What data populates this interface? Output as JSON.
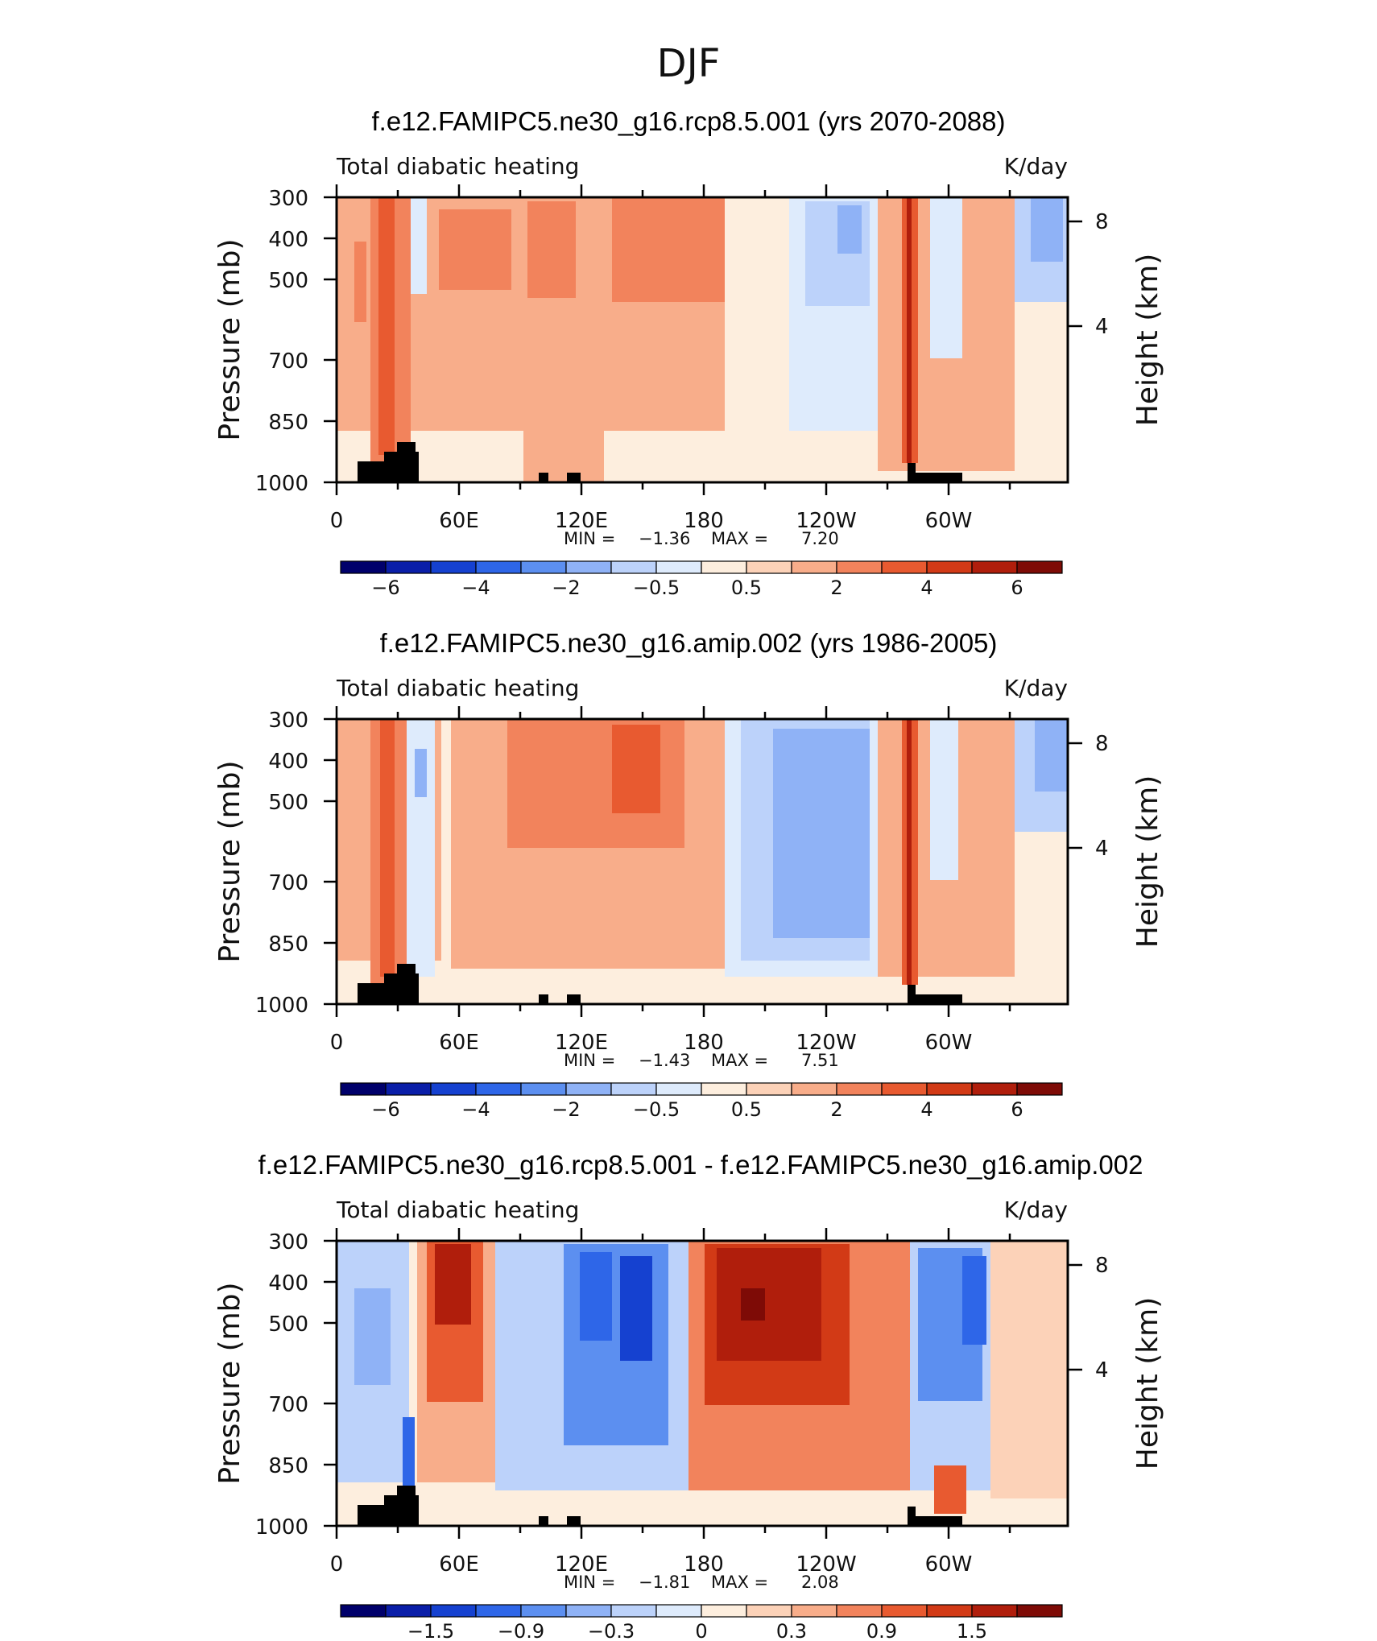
{
  "figure_title": "DJF",
  "colors": {
    "levels": [
      "#00006b",
      "#0a1ea8",
      "#1541d0",
      "#2e66e8",
      "#5c8ff0",
      "#8fb2f6",
      "#bcd2fa",
      "#deebfc",
      "#fdeede",
      "#fcd2b8",
      "#f8ad8a",
      "#f2835c",
      "#e85a30",
      "#d23a16",
      "#b01e0c",
      "#7e0b06"
    ],
    "land": "#000000"
  },
  "chart_data": [
    {
      "type": "heatmap",
      "title": "f.e12.FAMIPC5.ne30_g16.rcp8.5.001 (yrs 2070-2088)",
      "left_string": "Total diabatic heating",
      "right_string": "K/day",
      "xlabel": "",
      "ylabel": "Pressure (mb)",
      "ylabel_right": "Height (km)",
      "x_ticks": [
        "0",
        "60E",
        "120E",
        "180",
        "120W",
        "60W"
      ],
      "y_ticks": [
        "300",
        "400",
        "500",
        "700",
        "850",
        "1000"
      ],
      "height_ticks": [
        "8",
        "4"
      ],
      "min_label": "MIN =",
      "min_value": "−1.36",
      "max_label": "MAX =",
      "max_value": "7.20",
      "min": -1.36,
      "max": 7.2,
      "colorbar_labels": [
        "−6",
        "−4",
        "−2",
        "−0.5",
        "0.5",
        "2",
        "4",
        "6"
      ]
    },
    {
      "type": "heatmap",
      "title": "f.e12.FAMIPC5.ne30_g16.amip.002 (yrs 1986-2005)",
      "left_string": "Total diabatic heating",
      "right_string": "K/day",
      "xlabel": "",
      "ylabel": "Pressure (mb)",
      "ylabel_right": "Height (km)",
      "x_ticks": [
        "0",
        "60E",
        "120E",
        "180",
        "120W",
        "60W"
      ],
      "y_ticks": [
        "300",
        "400",
        "500",
        "700",
        "850",
        "1000"
      ],
      "height_ticks": [
        "8",
        "4"
      ],
      "min_label": "MIN =",
      "min_value": "−1.43",
      "max_label": "MAX =",
      "max_value": "7.51",
      "min": -1.43,
      "max": 7.51,
      "colorbar_labels": [
        "−6",
        "−4",
        "−2",
        "−0.5",
        "0.5",
        "2",
        "4",
        "6"
      ]
    },
    {
      "type": "heatmap",
      "title": "f.e12.FAMIPC5.ne30_g16.rcp8.5.001 - f.e12.FAMIPC5.ne30_g16.amip.002",
      "left_string": "Total diabatic heating",
      "right_string": "K/day",
      "xlabel": "",
      "ylabel": "Pressure (mb)",
      "ylabel_right": "Height (km)",
      "x_ticks": [
        "0",
        "60E",
        "120E",
        "180",
        "120W",
        "60W"
      ],
      "y_ticks": [
        "300",
        "400",
        "500",
        "700",
        "850",
        "1000"
      ],
      "height_ticks": [
        "8",
        "4"
      ],
      "min_label": "MIN =",
      "min_value": "−1.81",
      "max_label": "MAX =",
      "max_value": "2.08",
      "min": -1.81,
      "max": 2.08,
      "colorbar_labels": [
        "−1.5",
        "−0.9",
        "−0.3",
        "0",
        "0.3",
        "0.9",
        "1.5"
      ]
    }
  ]
}
